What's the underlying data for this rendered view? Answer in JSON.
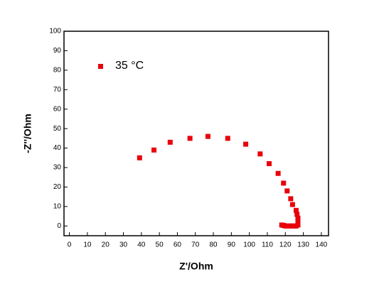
{
  "chart_data": {
    "type": "scatter",
    "x_label": "Z'/Ohm",
    "y_label": "-Z''/Ohm",
    "xlim": [
      -3,
      144
    ],
    "ylim": [
      -5,
      100
    ],
    "xticks": [
      0,
      10,
      20,
      30,
      40,
      50,
      60,
      70,
      80,
      90,
      100,
      110,
      120,
      130,
      140
    ],
    "yticks": [
      0,
      10,
      20,
      30,
      40,
      50,
      60,
      70,
      80,
      90,
      100
    ],
    "series": [
      {
        "name": "35 °C",
        "color": "#e8000b",
        "x": [
          39,
          47,
          56,
          67,
          77,
          88,
          98,
          106,
          111,
          116,
          119,
          121,
          123,
          124,
          126,
          126.5,
          127,
          127,
          127,
          127,
          127,
          126,
          125,
          124,
          123,
          122,
          121,
          120,
          119,
          118
        ],
        "values": [
          35,
          39,
          43,
          45,
          46,
          45,
          42,
          37,
          32,
          27,
          22,
          18,
          14,
          11,
          8,
          6,
          4,
          3,
          2,
          1,
          0.5,
          0,
          0,
          0,
          0,
          0,
          0,
          0,
          0.3,
          0.5
        ]
      }
    ]
  }
}
